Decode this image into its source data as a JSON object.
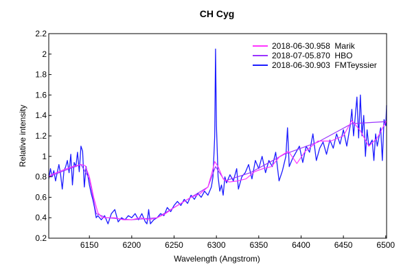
{
  "chart_data": {
    "type": "line",
    "title": "CH Cyg",
    "xlabel": "Wavelength (Angstrom)",
    "ylabel": "Relative intensity",
    "xlim": [
      6102,
      6501
    ],
    "ylim": [
      0.2,
      2.2
    ],
    "xticks": [
      6150,
      6200,
      6250,
      6300,
      6350,
      6400,
      6450,
      6500
    ],
    "yticks": [
      0.2,
      0.4,
      0.6,
      0.8,
      1,
      1.2,
      1.4,
      1.6,
      1.8,
      2,
      2.2
    ],
    "grid": false,
    "legend_position": "top-right",
    "series": [
      {
        "name": "2018-06-30.958  Marik",
        "color": "#ff33ff",
        "x": [
          6102,
          6105,
          6120,
          6130,
          6140,
          6145,
          6150,
          6155,
          6160,
          6165,
          6180,
          6190,
          6200,
          6210,
          6220,
          6230,
          6240,
          6250,
          6260,
          6270,
          6280,
          6290,
          6295,
          6298,
          6302,
          6308,
          6315,
          6325,
          6335,
          6345,
          6355,
          6365,
          6375,
          6385,
          6395,
          6405,
          6420,
          6435,
          6450,
          6460,
          6470,
          6480,
          6490,
          6501
        ],
        "y": [
          0.8,
          0.82,
          0.87,
          0.9,
          0.92,
          0.91,
          0.8,
          0.6,
          0.45,
          0.4,
          0.4,
          0.38,
          0.38,
          0.4,
          0.38,
          0.4,
          0.44,
          0.5,
          0.55,
          0.6,
          0.63,
          0.7,
          0.85,
          0.95,
          0.9,
          0.78,
          0.75,
          0.76,
          0.78,
          0.85,
          0.88,
          0.9,
          1.0,
          1.05,
          0.93,
          1.05,
          1.15,
          1.15,
          1.2,
          1.35,
          1.25,
          1.1,
          1.18,
          1.35
        ]
      },
      {
        "name": "2018-07-05.870  HBO",
        "color": "#9933ff",
        "x": [
          6102,
          6120,
          6140,
          6150,
          6158,
          6170,
          6200,
          6230,
          6260,
          6290,
          6299,
          6310,
          6340,
          6380,
          6420,
          6460,
          6501
        ],
        "y": [
          0.8,
          0.86,
          0.92,
          0.78,
          0.44,
          0.4,
          0.38,
          0.4,
          0.55,
          0.7,
          0.9,
          0.76,
          0.84,
          1.02,
          1.14,
          1.32,
          1.34
        ]
      },
      {
        "name": "2018-06-30.903  FMTeyssier",
        "color": "#1a1aff",
        "x": [
          6102,
          6104,
          6106,
          6108,
          6110,
          6112,
          6114,
          6116,
          6118,
          6120,
          6122,
          6124,
          6126,
          6128,
          6130,
          6132,
          6134,
          6136,
          6138,
          6140,
          6142,
          6144,
          6146,
          6148,
          6150,
          6152,
          6154,
          6156,
          6158,
          6160,
          6164,
          6168,
          6172,
          6176,
          6180,
          6184,
          6188,
          6192,
          6196,
          6200,
          6204,
          6208,
          6212,
          6216,
          6218,
          6220,
          6222,
          6226,
          6230,
          6234,
          6238,
          6242,
          6246,
          6250,
          6254,
          6258,
          6262,
          6266,
          6270,
          6274,
          6278,
          6282,
          6286,
          6290,
          6294,
          6296,
          6298,
          6299,
          6300,
          6302,
          6304,
          6306,
          6308,
          6310,
          6312,
          6316,
          6320,
          6324,
          6326,
          6330,
          6334,
          6338,
          6342,
          6346,
          6350,
          6354,
          6358,
          6362,
          6366,
          6370,
          6374,
          6378,
          6382,
          6384,
          6386,
          6390,
          6394,
          6398,
          6402,
          6406,
          6410,
          6414,
          6418,
          6422,
          6426,
          6430,
          6434,
          6438,
          6442,
          6446,
          6450,
          6454,
          6458,
          6460,
          6462,
          6466,
          6468,
          6470,
          6472,
          6474,
          6476,
          6478,
          6480,
          6484,
          6486,
          6488,
          6490,
          6494,
          6496,
          6498,
          6500,
          6501
        ],
        "y": [
          0.78,
          0.88,
          0.8,
          0.86,
          0.76,
          0.84,
          0.92,
          0.82,
          0.68,
          0.86,
          0.9,
          0.96,
          0.84,
          1.02,
          0.72,
          0.94,
          0.9,
          1.04,
          0.85,
          1.1,
          1.05,
          0.7,
          0.9,
          0.82,
          0.72,
          0.64,
          0.58,
          0.5,
          0.4,
          0.42,
          0.38,
          0.42,
          0.34,
          0.44,
          0.48,
          0.36,
          0.4,
          0.38,
          0.42,
          0.4,
          0.44,
          0.38,
          0.44,
          0.36,
          0.34,
          0.48,
          0.34,
          0.38,
          0.4,
          0.44,
          0.42,
          0.5,
          0.46,
          0.52,
          0.56,
          0.52,
          0.58,
          0.54,
          0.62,
          0.58,
          0.64,
          0.6,
          0.66,
          0.62,
          0.7,
          0.8,
          1.2,
          2.05,
          1.3,
          0.8,
          0.66,
          0.72,
          0.62,
          0.8,
          0.74,
          0.82,
          0.76,
          0.88,
          0.68,
          0.8,
          0.84,
          0.92,
          0.78,
          0.96,
          0.88,
          1.0,
          0.84,
          0.96,
          0.9,
          1.04,
          0.76,
          0.86,
          1.0,
          1.28,
          0.9,
          0.98,
          1.04,
          1.1,
          0.94,
          1.1,
          1.04,
          1.22,
          0.96,
          1.08,
          1.14,
          1.02,
          1.16,
          1.08,
          1.22,
          1.12,
          1.26,
          1.1,
          1.3,
          1.46,
          1.2,
          1.58,
          1.18,
          1.6,
          1.2,
          1.4,
          1.0,
          1.26,
          1.1,
          1.16,
          0.96,
          1.22,
          1.1,
          1.28,
          0.96,
          1.36,
          1.3,
          1.5
        ]
      }
    ]
  }
}
